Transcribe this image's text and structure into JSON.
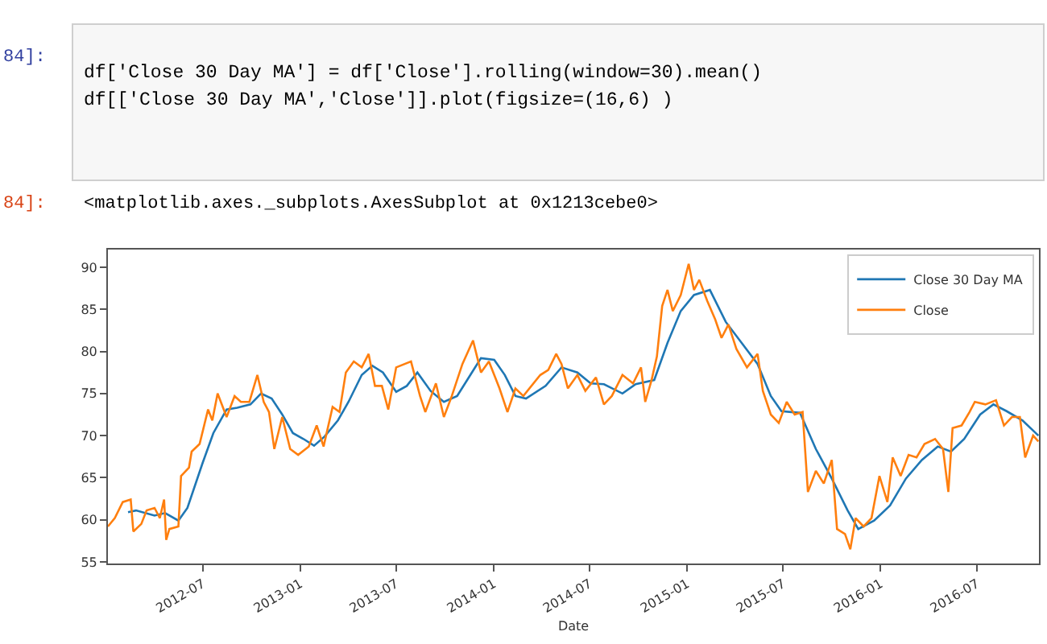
{
  "chart_data": {
    "type": "line",
    "annotations": [
      "84]:",
      "df['Close 30 Day MA'] = df['Close'].rolling(window=30).mean()",
      "df[['Close 30 Day MA','Close']].plot(figsize=(16,6) )",
      "84]:",
      "<matplotlib.axes._subplots.AxesSubplot at 0x1213cebe0>"
    ],
    "xlabel": "Date",
    "xlim": [
      "2012-01-04",
      "2016-10-26"
    ],
    "xticks": [
      {
        "value": "2012-07-01",
        "label": "2012-07"
      },
      {
        "value": "2013-01-01",
        "label": "2013-01"
      },
      {
        "value": "2013-07-01",
        "label": "2013-07"
      },
      {
        "value": "2014-01-01",
        "label": "2014-01"
      },
      {
        "value": "2014-07-01",
        "label": "2014-07"
      },
      {
        "value": "2015-01-01",
        "label": "2015-01"
      },
      {
        "value": "2015-07-01",
        "label": "2015-07"
      },
      {
        "value": "2016-01-01",
        "label": "2016-01"
      },
      {
        "value": "2016-07-01",
        "label": "2016-07"
      }
    ],
    "ylim": [
      54.8,
      92.1
    ],
    "yticks": [
      55,
      60,
      65,
      70,
      75,
      80,
      85,
      90
    ],
    "grid": false,
    "legend": "top right",
    "series": [
      {
        "name": "Close 30 Day MA",
        "color": "#1f77b4",
        "x": [
          "2012-02-11",
          "2012-02-26",
          "2012-04-01",
          "2012-04-21",
          "2012-05-16",
          "2012-06-02",
          "2012-07-01",
          "2012-07-21",
          "2012-08-15",
          "2012-09-04",
          "2012-09-29",
          "2012-10-19",
          "2012-11-08",
          "2012-11-28",
          "2012-12-18",
          "2013-01-07",
          "2013-01-27",
          "2013-02-16",
          "2013-03-13",
          "2013-04-02",
          "2013-04-27",
          "2013-05-17",
          "2013-06-06",
          "2013-07-01",
          "2013-07-21",
          "2013-08-10",
          "2013-09-04",
          "2013-09-29",
          "2013-10-24",
          "2013-11-18",
          "2013-12-08",
          "2014-01-02",
          "2014-01-22",
          "2014-02-11",
          "2014-03-03",
          "2014-04-09",
          "2014-05-09",
          "2014-06-08",
          "2014-07-03",
          "2014-07-28",
          "2014-09-01",
          "2014-09-26",
          "2014-10-31",
          "2014-11-25",
          "2014-12-20",
          "2015-01-14",
          "2015-02-13",
          "2015-03-15",
          "2015-04-14",
          "2015-05-14",
          "2015-06-08",
          "2015-06-28",
          "2015-08-02",
          "2015-09-01",
          "2015-10-01",
          "2015-10-31",
          "2015-11-20",
          "2015-12-20",
          "2016-01-19",
          "2016-02-18",
          "2016-03-19",
          "2016-04-18",
          "2016-05-13",
          "2016-06-07",
          "2016-07-07",
          "2016-08-01",
          "2016-08-26",
          "2016-09-25",
          "2016-10-25"
        ],
        "values": [
          60.9,
          61.1,
          60.5,
          60.8,
          59.9,
          61.4,
          66.8,
          70.3,
          73.1,
          73.3,
          73.7,
          75.0,
          74.4,
          72.5,
          70.3,
          69.6,
          68.8,
          69.9,
          71.8,
          74.0,
          77.2,
          78.3,
          77.5,
          75.2,
          75.9,
          77.5,
          75.3,
          74.0,
          74.7,
          77.2,
          79.2,
          79.0,
          77.2,
          74.7,
          74.4,
          75.9,
          78.1,
          77.5,
          76.2,
          76.1,
          75.0,
          76.1,
          76.6,
          81.0,
          84.8,
          86.7,
          87.3,
          83.5,
          81.0,
          78.5,
          74.7,
          72.9,
          72.7,
          68.4,
          64.9,
          61.1,
          58.9,
          59.9,
          61.7,
          64.9,
          67.1,
          68.7,
          68.1,
          69.6,
          72.5,
          73.7,
          72.9,
          71.8,
          70.0
        ]
      },
      {
        "name": "Close",
        "color": "#ff7f0e",
        "x": [
          "2012-01-04",
          "2012-01-17",
          "2012-02-01",
          "2012-02-16",
          "2012-02-21",
          "2012-03-07",
          "2012-03-17",
          "2012-04-01",
          "2012-04-11",
          "2012-04-19",
          "2012-04-23",
          "2012-04-29",
          "2012-05-16",
          "2012-05-21",
          "2012-06-05",
          "2012-06-10",
          "2012-06-25",
          "2012-07-11",
          "2012-07-19",
          "2012-07-29",
          "2012-08-15",
          "2012-08-30",
          "2012-09-11",
          "2012-09-27",
          "2012-10-12",
          "2012-10-24",
          "2012-11-03",
          "2012-11-13",
          "2012-11-28",
          "2012-12-13",
          "2012-12-28",
          "2013-01-17",
          "2013-02-01",
          "2013-02-14",
          "2013-03-03",
          "2013-03-16",
          "2013-03-28",
          "2013-04-12",
          "2013-04-27",
          "2013-05-10",
          "2013-05-22",
          "2013-06-04",
          "2013-06-16",
          "2013-07-01",
          "2013-07-29",
          "2013-08-15",
          "2013-08-25",
          "2013-09-14",
          "2013-09-29",
          "2013-10-14",
          "2013-11-03",
          "2013-11-23",
          "2013-12-08",
          "2013-12-23",
          "2014-01-12",
          "2014-01-27",
          "2014-02-11",
          "2014-02-26",
          "2014-03-30",
          "2014-04-14",
          "2014-04-29",
          "2014-05-09",
          "2014-05-21",
          "2014-06-08",
          "2014-06-23",
          "2014-07-13",
          "2014-07-28",
          "2014-08-12",
          "2014-09-01",
          "2014-09-21",
          "2014-10-06",
          "2014-10-14",
          "2014-10-26",
          "2014-11-05",
          "2014-11-15",
          "2014-11-25",
          "2014-12-05",
          "2014-12-20",
          "2015-01-04",
          "2015-01-14",
          "2015-01-24",
          "2015-02-08",
          "2015-02-23",
          "2015-03-07",
          "2015-03-20",
          "2015-04-04",
          "2015-04-24",
          "2015-05-14",
          "2015-05-24",
          "2015-06-08",
          "2015-06-23",
          "2015-07-08",
          "2015-07-23",
          "2015-08-07",
          "2015-08-17",
          "2015-09-01",
          "2015-09-16",
          "2015-10-01",
          "2015-10-11",
          "2015-10-26",
          "2015-11-05",
          "2015-11-15",
          "2015-11-30",
          "2015-12-15",
          "2015-12-30",
          "2016-01-14",
          "2016-01-24",
          "2016-02-08",
          "2016-02-23",
          "2016-03-09",
          "2016-03-24",
          "2016-04-13",
          "2016-04-28",
          "2016-05-08",
          "2016-05-16",
          "2016-06-02",
          "2016-06-17",
          "2016-06-27",
          "2016-07-17",
          "2016-08-06",
          "2016-08-21",
          "2016-09-05",
          "2016-09-20",
          "2016-09-30",
          "2016-10-15",
          "2016-10-25"
        ],
        "values": [
          59.2,
          60.2,
          62.1,
          62.4,
          58.6,
          59.5,
          61.1,
          61.4,
          60.2,
          62.4,
          57.6,
          58.9,
          59.2,
          65.2,
          66.2,
          68.1,
          69.0,
          73.1,
          71.8,
          75.0,
          72.2,
          74.7,
          74.0,
          74.0,
          77.2,
          74.0,
          72.8,
          68.4,
          72.2,
          68.4,
          67.7,
          68.7,
          71.2,
          68.7,
          73.4,
          72.8,
          77.5,
          78.8,
          78.1,
          79.7,
          75.9,
          75.9,
          73.1,
          78.1,
          78.8,
          74.7,
          72.8,
          76.2,
          72.2,
          74.7,
          78.5,
          81.3,
          77.5,
          78.8,
          75.6,
          72.8,
          75.6,
          74.7,
          77.2,
          77.8,
          79.7,
          78.5,
          75.6,
          77.2,
          75.3,
          76.9,
          73.7,
          74.7,
          77.2,
          76.2,
          78.1,
          74.0,
          76.6,
          79.4,
          85.4,
          87.3,
          84.8,
          86.7,
          90.4,
          87.3,
          88.5,
          86.0,
          83.8,
          81.6,
          83.2,
          80.3,
          78.1,
          79.7,
          75.3,
          72.5,
          71.5,
          74.0,
          72.5,
          72.8,
          63.3,
          65.8,
          64.3,
          67.1,
          58.9,
          58.3,
          56.5,
          60.2,
          59.2,
          60.2,
          65.2,
          62.1,
          67.4,
          65.2,
          67.7,
          67.4,
          69.0,
          69.6,
          68.4,
          63.3,
          70.9,
          71.2,
          72.8,
          74.0,
          73.7,
          74.2,
          71.2,
          72.2,
          72.2,
          67.4,
          70.0,
          69.3
        ]
      }
    ]
  }
}
